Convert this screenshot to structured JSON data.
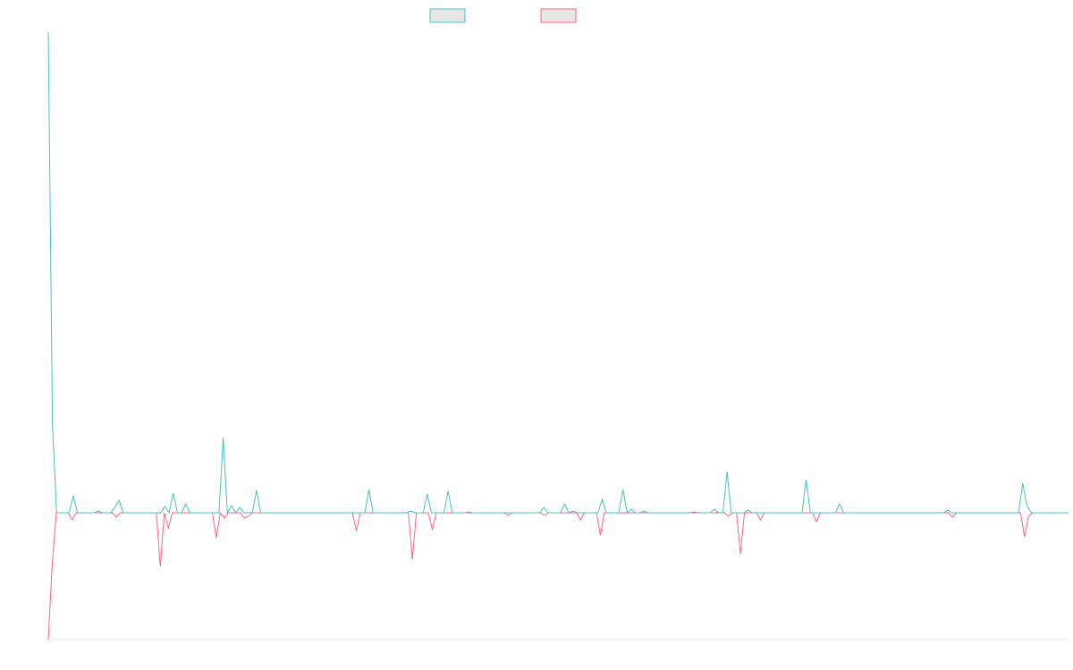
{
  "chart_data": {
    "type": "line",
    "ylim": [
      -142,
      538
    ],
    "series": [
      {
        "color": "#ff6384",
        "values": [
          -142,
          -57,
          0,
          0,
          0,
          0,
          -8,
          0,
          0,
          0,
          0,
          0,
          0,
          0,
          0,
          0,
          0,
          -5,
          0,
          0,
          0,
          0,
          0,
          0,
          0,
          0,
          0,
          0,
          -60,
          0,
          -17,
          0,
          0,
          0,
          0,
          0,
          0,
          0,
          0,
          0,
          0,
          0,
          -28,
          0,
          -6,
          0,
          0,
          0,
          0,
          -6,
          -4,
          0,
          0,
          0,
          0,
          0,
          0,
          0,
          0,
          0,
          0,
          0,
          0,
          0,
          0,
          0,
          0,
          0,
          0,
          0,
          0,
          0,
          0,
          0,
          0,
          0,
          0,
          -20,
          0,
          0,
          0,
          0,
          0,
          0,
          0,
          0,
          0,
          0,
          0,
          0,
          0,
          -52,
          0,
          0,
          0,
          0,
          -19,
          0,
          0,
          0,
          0,
          0,
          0,
          0,
          0,
          0,
          0,
          0,
          0,
          0,
          0,
          0,
          0,
          0,
          0,
          -3,
          0,
          0,
          0,
          0,
          0,
          0,
          0,
          0,
          -3,
          0,
          0,
          0,
          0,
          0,
          0,
          0,
          0,
          -8,
          0,
          0,
          0,
          0,
          -25,
          0,
          0,
          0,
          0,
          0,
          0,
          0,
          0,
          0,
          0,
          0,
          0,
          0,
          0,
          0,
          0,
          0,
          0,
          0,
          0,
          0,
          0,
          0,
          0,
          0,
          0,
          0,
          0,
          0,
          0,
          0,
          -4,
          0,
          0,
          -46,
          0,
          0,
          0,
          0,
          -8,
          0,
          0,
          0,
          0,
          0,
          0,
          0,
          0,
          0,
          0,
          0,
          0,
          0,
          -10,
          0,
          0,
          0,
          0,
          0,
          0,
          0,
          0,
          0,
          0,
          0,
          0,
          0,
          0,
          0,
          0,
          0,
          0,
          0,
          0,
          0,
          0,
          0,
          0,
          0,
          0,
          0,
          0,
          0,
          0,
          0,
          0,
          0,
          -5,
          0,
          0,
          0,
          0,
          0,
          0,
          0,
          0,
          0,
          0,
          0,
          0,
          0,
          0,
          0,
          0,
          0,
          -27,
          -4,
          0,
          0,
          0,
          0,
          0,
          0,
          0,
          0,
          0,
          0
        ]
      },
      {
        "color": "#4bc0c0",
        "values": [
          538,
          99,
          0,
          0,
          0,
          0,
          19,
          0,
          0,
          0,
          0,
          0,
          2,
          0,
          0,
          0,
          6,
          14,
          0,
          0,
          0,
          0,
          0,
          0,
          0,
          0,
          0,
          0,
          7,
          0,
          22,
          0,
          0,
          10,
          0,
          0,
          0,
          0,
          0,
          0,
          0,
          0,
          84,
          0,
          8,
          0,
          6,
          0,
          0,
          0,
          25,
          0,
          0,
          0,
          0,
          0,
          0,
          0,
          0,
          0,
          0,
          0,
          0,
          0,
          0,
          0,
          0,
          0,
          0,
          0,
          0,
          0,
          0,
          0,
          0,
          0,
          0,
          26,
          0,
          0,
          0,
          0,
          0,
          0,
          0,
          0,
          0,
          2,
          0,
          0,
          0,
          21,
          0,
          0,
          0,
          0,
          24,
          0,
          0,
          0,
          0,
          1,
          0,
          0,
          0,
          0,
          0,
          0,
          0,
          0,
          0,
          0,
          0,
          0,
          0,
          0,
          0,
          0,
          0,
          6,
          0,
          0,
          0,
          0,
          10,
          0,
          2,
          0,
          0,
          0,
          0,
          0,
          0,
          15,
          0,
          0,
          0,
          0,
          26,
          0,
          4,
          0,
          0,
          2,
          0,
          0,
          0,
          0,
          0,
          0,
          0,
          0,
          0,
          0,
          0,
          1,
          0,
          0,
          0,
          0,
          4,
          0,
          0,
          46,
          0,
          0,
          0,
          0,
          3,
          0,
          0,
          0,
          0,
          0,
          0,
          0,
          0,
          0,
          0,
          0,
          0,
          0,
          37,
          0,
          0,
          0,
          0,
          0,
          0,
          0,
          10,
          0,
          0,
          0,
          0,
          0,
          0,
          0,
          0,
          0,
          0,
          0,
          0,
          0,
          0,
          0,
          0,
          0,
          0,
          0,
          0,
          0,
          0,
          0,
          0,
          0,
          3,
          0,
          0,
          0,
          0,
          0,
          0,
          0,
          0,
          0,
          0,
          0,
          0,
          0,
          0,
          0,
          0,
          0,
          33,
          8,
          0,
          0,
          0,
          0,
          0,
          0,
          0,
          0,
          0,
          0
        ]
      }
    ]
  }
}
